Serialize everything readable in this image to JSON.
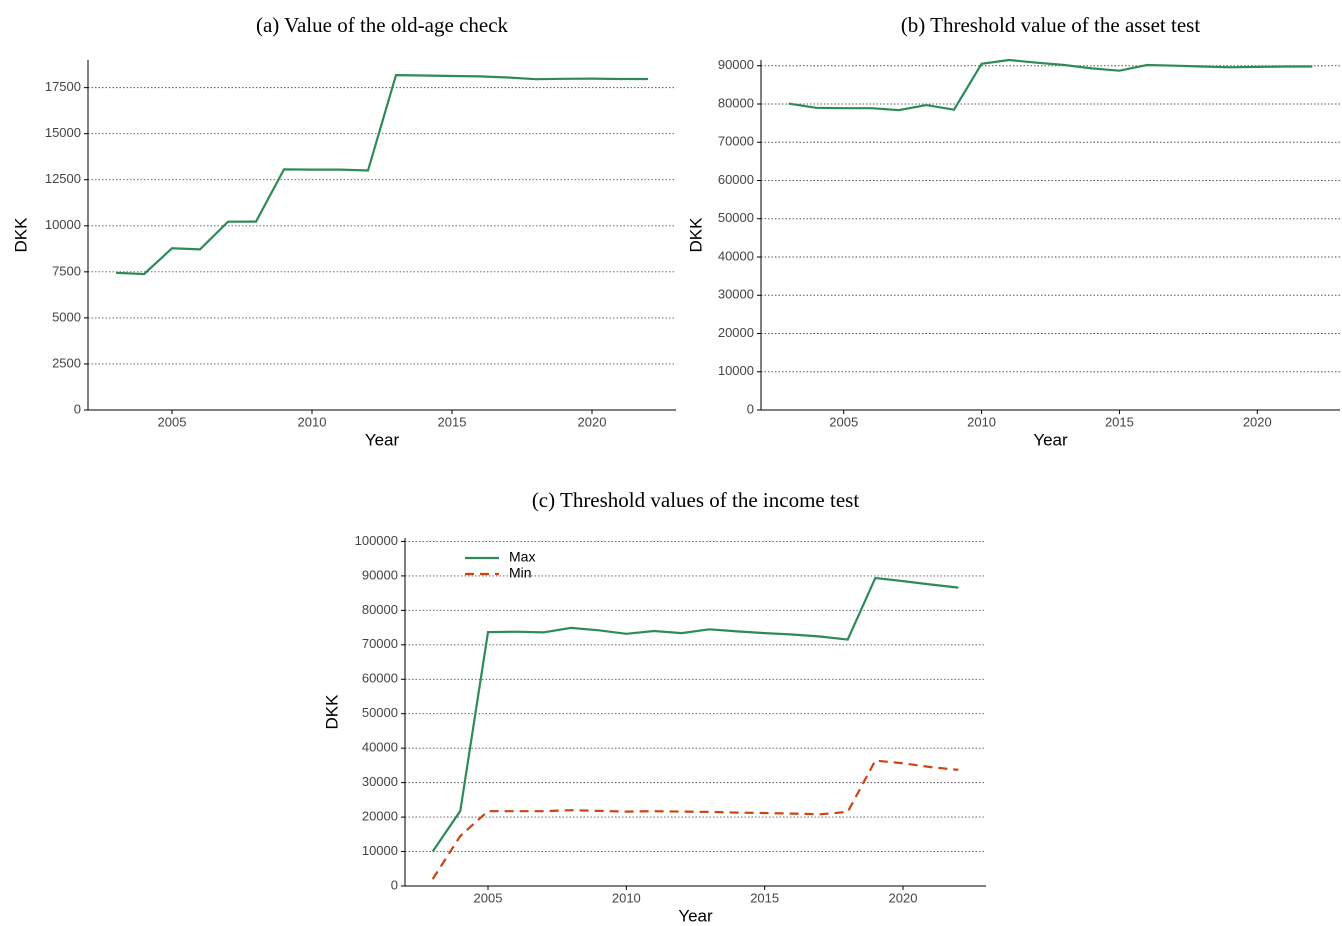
{
  "chart_data": [
    {
      "type": "line",
      "title": "(a) Value of the old-age check",
      "x_label": "Year",
      "y_label": "DKK",
      "x": [
        2003,
        2004,
        2005,
        2006,
        2007,
        2008,
        2009,
        2010,
        2011,
        2012,
        2013,
        2014,
        2015,
        2016,
        2017,
        2018,
        2019,
        2020,
        2021,
        2022
      ],
      "series": [
        {
          "color": "#2e8b57",
          "linestyle": "solid",
          "values": [
            7450,
            7380,
            8780,
            8720,
            10220,
            10230,
            13060,
            13050,
            13050,
            13000,
            18180,
            18160,
            18130,
            18110,
            18050,
            17960,
            17980,
            17990,
            17970,
            17970
          ]
        }
      ],
      "xlim": [
        2002,
        2023
      ],
      "xticks": [
        2005,
        2010,
        2015,
        2020
      ],
      "ylim": [
        0,
        19000
      ],
      "yticks": [
        0,
        2500,
        5000,
        7500,
        10000,
        12500,
        15000,
        17500
      ],
      "grid": true
    },
    {
      "type": "line",
      "title": "(b) Threshold value of the asset test",
      "x_label": "Year",
      "y_label": "DKK",
      "x": [
        2003,
        2004,
        2005,
        2006,
        2007,
        2008,
        2009,
        2010,
        2011,
        2012,
        2013,
        2014,
        2015,
        2016,
        2017,
        2018,
        2019,
        2020,
        2021,
        2022
      ],
      "series": [
        {
          "color": "#2e8b57",
          "linestyle": "solid",
          "values": [
            80100,
            79000,
            78900,
            78900,
            78400,
            79700,
            78500,
            90500,
            91500,
            90800,
            90200,
            89300,
            88700,
            90200,
            90000,
            89800,
            89600,
            89700,
            89800,
            89800
          ]
        }
      ],
      "xlim": [
        2002,
        2023
      ],
      "xticks": [
        2005,
        2010,
        2015,
        2020
      ],
      "ylim": [
        0,
        91500
      ],
      "yticks": [
        0,
        10000,
        20000,
        30000,
        40000,
        50000,
        60000,
        70000,
        80000,
        90000
      ],
      "grid": true
    },
    {
      "type": "line",
      "title": "(c) Threshold values of the income test",
      "x_label": "Year",
      "y_label": "DKK",
      "x": [
        2003,
        2004,
        2005,
        2006,
        2007,
        2008,
        2009,
        2010,
        2011,
        2012,
        2013,
        2014,
        2015,
        2016,
        2017,
        2018,
        2019,
        2020,
        2021,
        2022
      ],
      "series": [
        {
          "name": "Max",
          "color": "#2e8b57",
          "linestyle": "solid",
          "values": [
            10000,
            21800,
            73700,
            73800,
            73600,
            74900,
            74200,
            73200,
            74000,
            73400,
            74500,
            73900,
            73400,
            73000,
            72400,
            71500,
            89400,
            88500,
            87500,
            86600
          ]
        },
        {
          "name": "Min",
          "color": "#cc4411",
          "linestyle": "dashed",
          "values": [
            2000,
            14500,
            21700,
            21700,
            21700,
            22000,
            21800,
            21600,
            21700,
            21600,
            21500,
            21300,
            21200,
            21000,
            20800,
            21500,
            36400,
            35600,
            34500,
            33700
          ]
        }
      ],
      "xlim": [
        2002,
        2023
      ],
      "xticks": [
        2005,
        2010,
        2015,
        2020
      ],
      "ylim": [
        0,
        101000
      ],
      "yticks": [
        0,
        10000,
        20000,
        30000,
        40000,
        50000,
        60000,
        70000,
        80000,
        90000,
        100000
      ],
      "grid": true,
      "legend": "upper left"
    }
  ]
}
